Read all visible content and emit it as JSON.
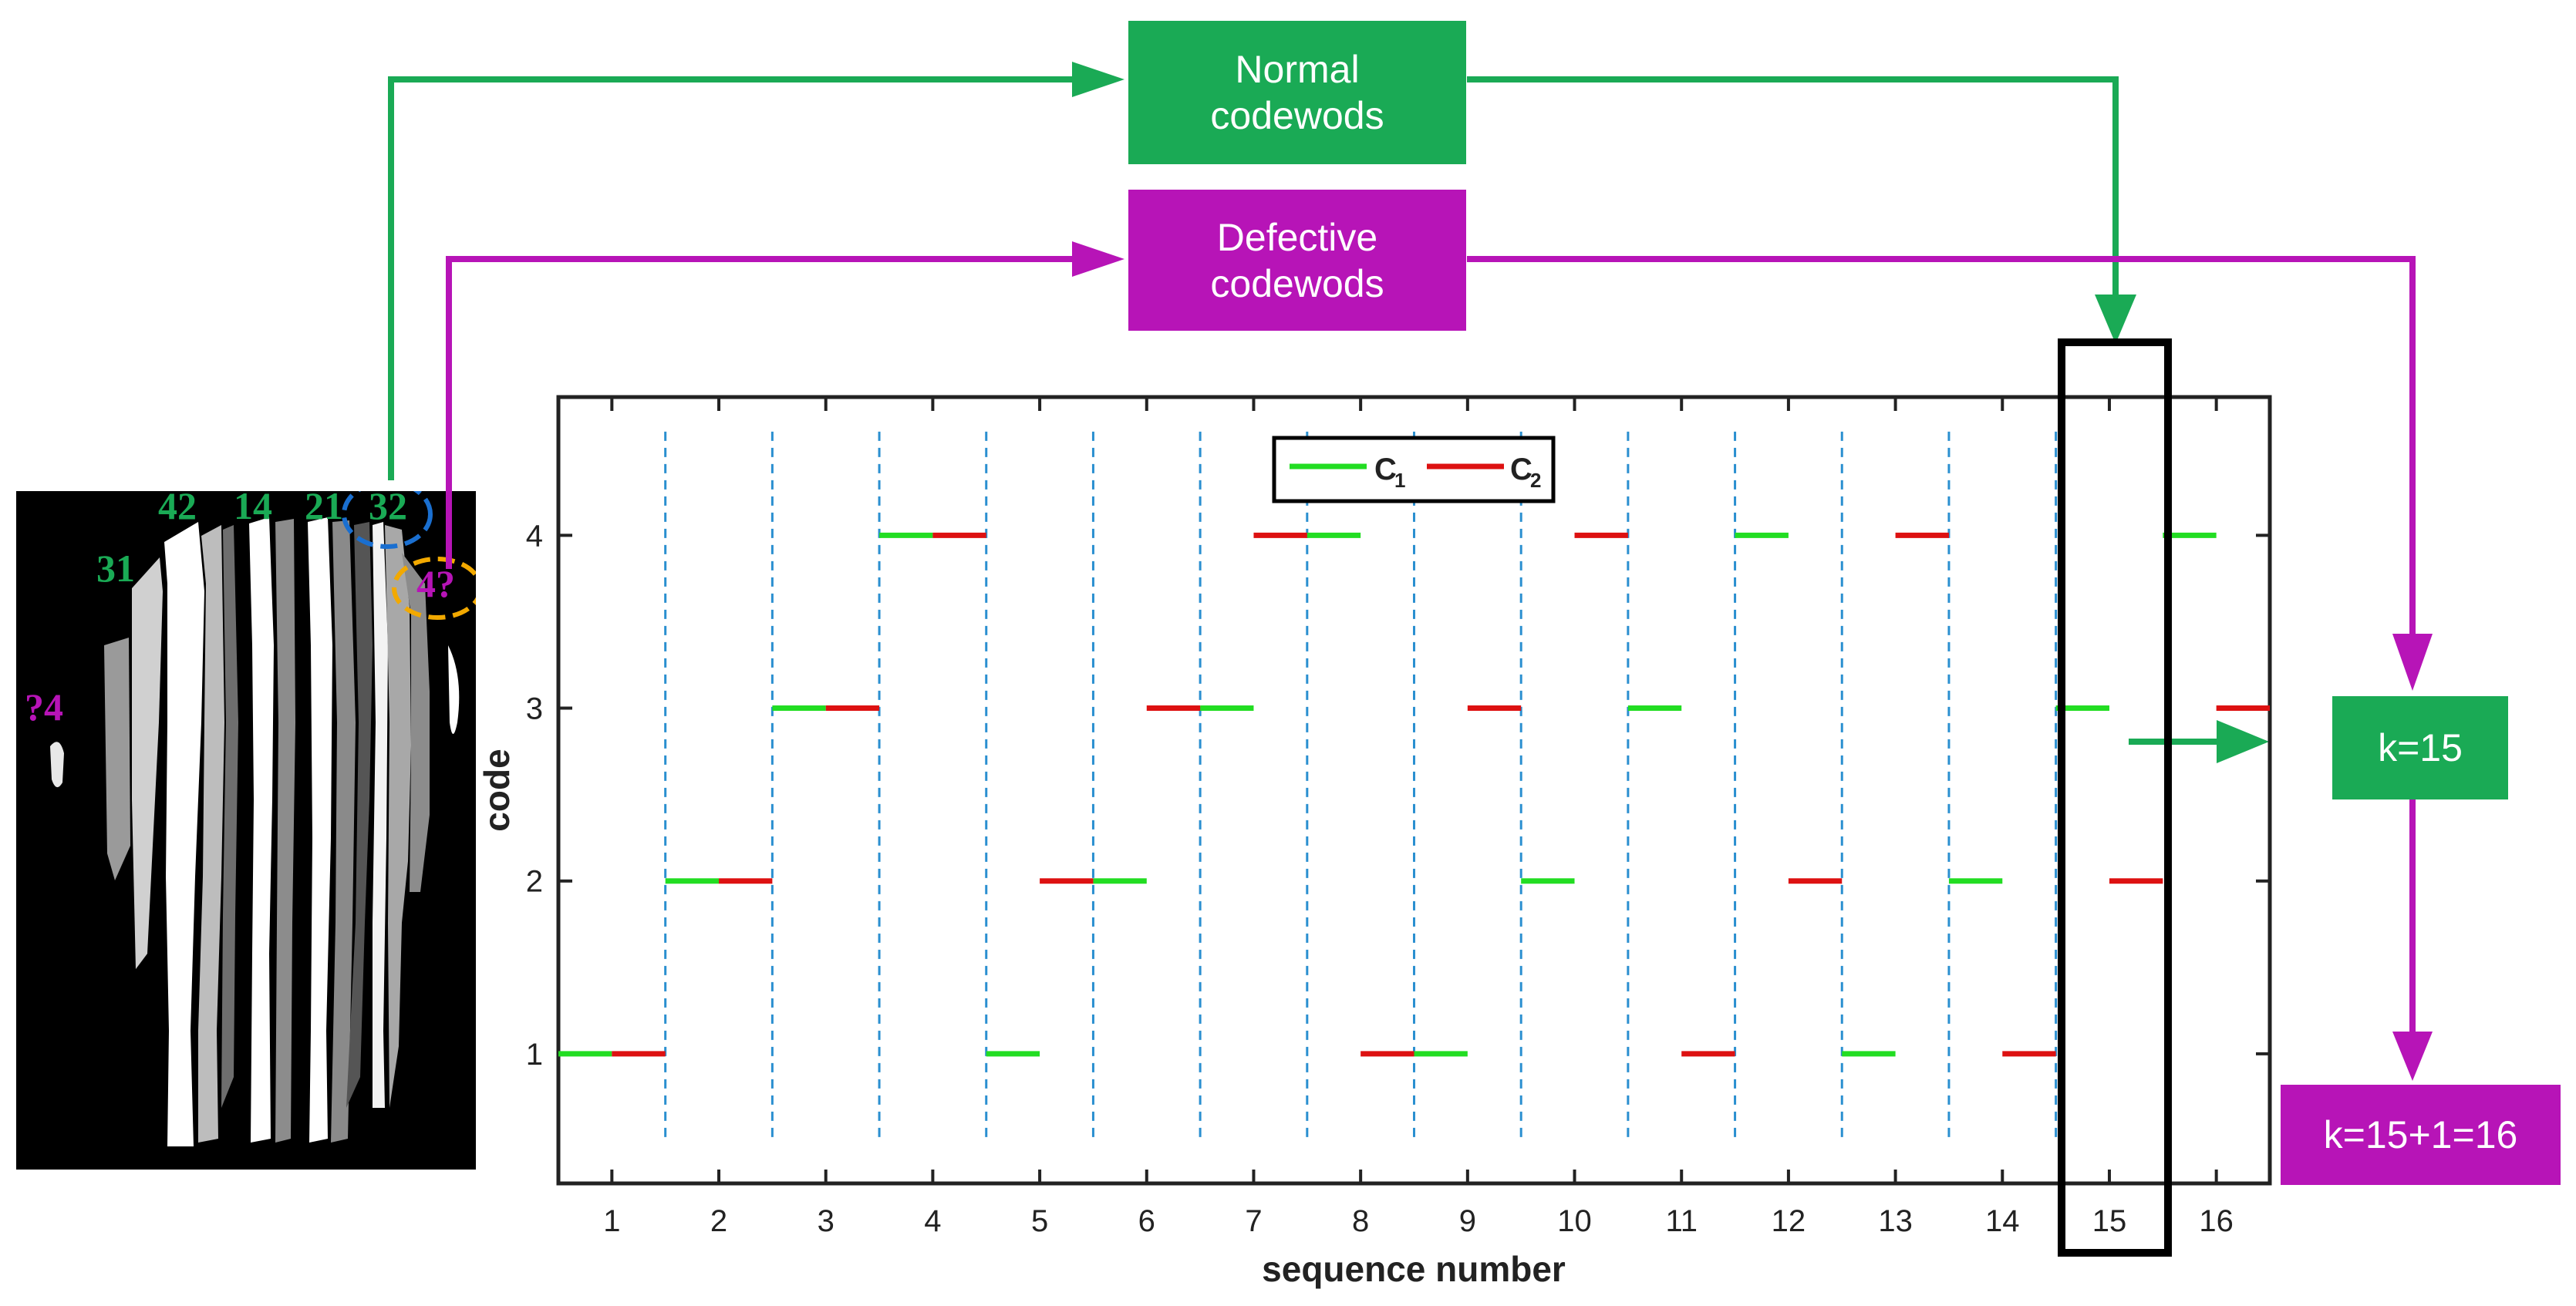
{
  "colors": {
    "normal": "#1aaa55",
    "defective": "#b714b7",
    "c1_line": "#22dd22",
    "c2_line": "#dd1111",
    "divider": "#2a8fd0",
    "orange_ring": "#f2a900",
    "blue_ring": "#1a6fd0"
  },
  "flow": {
    "normal_box": {
      "line1": "Normal",
      "line2": "codewods"
    },
    "defective_box": {
      "line1": "Defective",
      "line2": "codewods"
    },
    "k_box": "k=15",
    "k_result_box": "k=15+1=16"
  },
  "stripe_image": {
    "labels_green": [
      "42",
      "14",
      "21",
      "32",
      "31"
    ],
    "labels_magenta": [
      "4?",
      "?4"
    ]
  },
  "chart_data": {
    "type": "line",
    "title": "",
    "xlabel": "sequence number",
    "ylabel": "code",
    "xlim": [
      0.5,
      16.5
    ],
    "ylim": [
      0.25,
      4.8
    ],
    "xticks": [
      1,
      2,
      3,
      4,
      5,
      6,
      7,
      8,
      9,
      10,
      11,
      12,
      13,
      14,
      15,
      16
    ],
    "yticks": [
      1,
      2,
      3,
      4
    ],
    "dividers": [
      1.5,
      2.5,
      3.5,
      4.5,
      5.5,
      6.5,
      7.5,
      8.5,
      9.5,
      10.5,
      11.5,
      12.5,
      13.5,
      14.5
    ],
    "highlight_sequence": 15,
    "legend": {
      "position": "top-center",
      "entries": [
        "C",
        "C"
      ],
      "subscripts": [
        "1",
        "2"
      ]
    },
    "series": [
      {
        "name": "C1",
        "segments": [
          [
            1,
            1
          ],
          [
            2,
            2
          ],
          [
            3,
            3
          ],
          [
            4,
            4
          ],
          [
            5,
            1
          ],
          [
            6,
            2
          ],
          [
            7,
            3
          ],
          [
            8,
            4
          ],
          [
            9,
            1
          ],
          [
            10,
            2
          ],
          [
            11,
            3
          ],
          [
            12,
            4
          ],
          [
            13,
            1
          ],
          [
            14,
            2
          ],
          [
            15,
            3
          ],
          [
            16,
            4
          ]
        ]
      },
      {
        "name": "C2",
        "segments": [
          [
            1,
            1
          ],
          [
            2,
            2
          ],
          [
            3,
            3
          ],
          [
            4,
            4
          ],
          [
            5,
            2
          ],
          [
            6,
            3
          ],
          [
            7,
            4
          ],
          [
            8,
            1
          ],
          [
            9,
            3
          ],
          [
            10,
            4
          ],
          [
            11,
            1
          ],
          [
            12,
            2
          ],
          [
            13,
            4
          ],
          [
            14,
            1
          ],
          [
            15,
            2
          ],
          [
            16,
            3
          ]
        ]
      }
    ]
  }
}
